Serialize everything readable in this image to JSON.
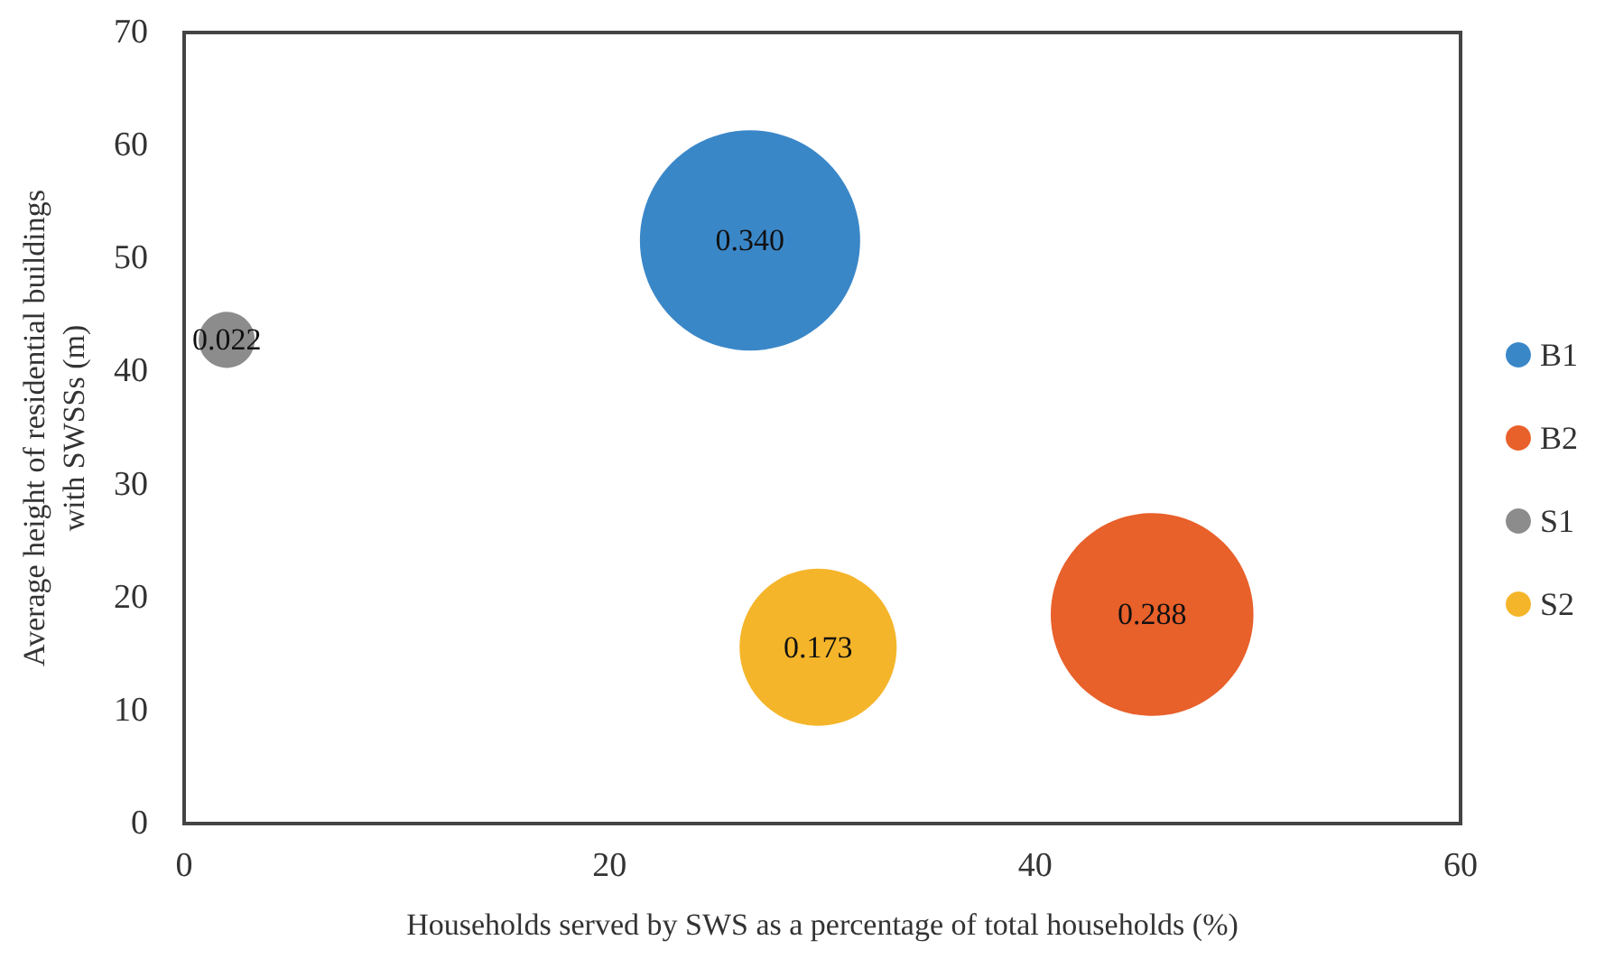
{
  "chart_data": {
    "type": "bubble",
    "xlabel": "Households served by SWS as a percentage of total households (%)",
    "ylabel": "Average height of residential buildings\nwith SWSSs (m)",
    "series": [
      {
        "name": "B1",
        "color": "#3a87c8",
        "x": [
          26.6
        ],
        "values": [
          51.6
        ],
        "sizes": [
          0.34
        ],
        "value_labels": [
          "0.340"
        ]
      },
      {
        "name": "B2",
        "color": "#e8602a",
        "x": [
          45.5
        ],
        "values": [
          18.5
        ],
        "sizes": [
          0.288
        ],
        "value_labels": [
          "0.288"
        ]
      },
      {
        "name": "S1",
        "color": "#8c8c8c",
        "x": [
          2.0
        ],
        "values": [
          42.8
        ],
        "sizes": [
          0.022
        ],
        "value_labels": [
          "0.022"
        ]
      },
      {
        "name": "S2",
        "color": "#f5b52a",
        "x": [
          29.8
        ],
        "values": [
          15.6
        ],
        "sizes": [
          0.173
        ],
        "value_labels": [
          "0.173"
        ]
      }
    ],
    "xlim": [
      0,
      60
    ],
    "xticks": [
      0,
      20,
      40,
      60
    ],
    "ylim": [
      0,
      70
    ],
    "yticks": [
      0,
      10,
      20,
      30,
      40,
      50,
      60,
      70
    ],
    "grid": false,
    "legend": "right"
  }
}
